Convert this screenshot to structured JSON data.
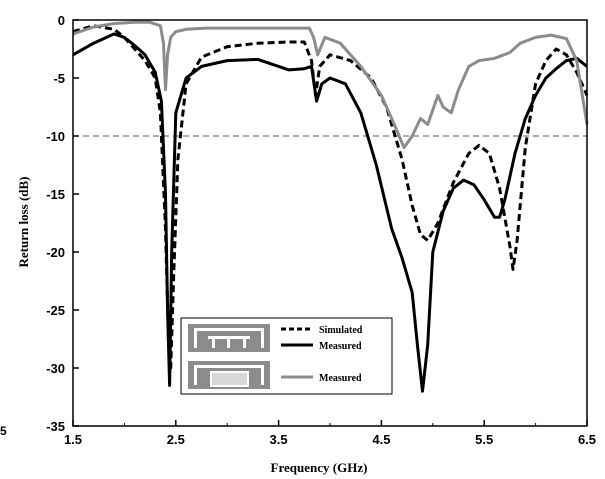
{
  "chart_data": {
    "type": "line",
    "title": "",
    "xlabel": "Frequency (GHz)",
    "ylabel": "Return loss (dB)",
    "xlim": [
      1.5,
      6.5
    ],
    "ylim": [
      -35,
      0
    ],
    "xticks": [
      1.5,
      2.5,
      3.5,
      4.5,
      5.5,
      6.5
    ],
    "xtick_labels": [
      "1.5",
      "2.5",
      "3.5",
      "4.5",
      "5.5",
      "6.5"
    ],
    "yticks": [
      0,
      -5,
      -10,
      -15,
      -20,
      -25,
      -30,
      -35
    ],
    "ytick_labels": [
      "0",
      "-5",
      "-10",
      "-15",
      "-20",
      "-25",
      "-30",
      "-35"
    ],
    "reference_line": {
      "y": -10,
      "style": "dashed"
    },
    "stray_label": "5",
    "legend_position": "bottom-center",
    "series": [
      {
        "name": "Simulated",
        "style": "dashed",
        "color": "#000000",
        "x": [
          1.5,
          1.7,
          1.9,
          2.0,
          2.1,
          2.2,
          2.3,
          2.35,
          2.4,
          2.43,
          2.45,
          2.48,
          2.52,
          2.6,
          2.75,
          3.0,
          3.3,
          3.6,
          3.75,
          3.82,
          3.86,
          3.9,
          4.0,
          4.2,
          4.4,
          4.55,
          4.7,
          4.8,
          4.88,
          4.95,
          5.05,
          5.2,
          5.35,
          5.45,
          5.55,
          5.65,
          5.75,
          5.78,
          5.82,
          5.9,
          6.0,
          6.1,
          6.2,
          6.3,
          6.4,
          6.5
        ],
        "y": [
          -1.0,
          -0.5,
          -0.8,
          -1.5,
          -2.5,
          -3.5,
          -5.0,
          -8.0,
          -18.0,
          -28.0,
          -30.0,
          -22.0,
          -12.0,
          -5.5,
          -3.2,
          -2.3,
          -2.0,
          -1.9,
          -1.9,
          -3.5,
          -6.5,
          -4.0,
          -3.0,
          -3.5,
          -5.0,
          -7.5,
          -12.0,
          -16.0,
          -18.5,
          -19.0,
          -17.5,
          -14.0,
          -11.5,
          -10.8,
          -11.5,
          -14.5,
          -19.5,
          -21.5,
          -19.0,
          -11.0,
          -5.5,
          -3.5,
          -2.5,
          -3.0,
          -4.5,
          -6.5
        ]
      },
      {
        "name": "Measured",
        "style": "solid",
        "color": "#000000",
        "x": [
          1.5,
          1.7,
          1.9,
          2.0,
          2.1,
          2.2,
          2.3,
          2.36,
          2.4,
          2.42,
          2.44,
          2.46,
          2.5,
          2.6,
          2.75,
          3.0,
          3.3,
          3.6,
          3.75,
          3.82,
          3.87,
          3.92,
          4.0,
          4.15,
          4.3,
          4.45,
          4.6,
          4.7,
          4.8,
          4.85,
          4.9,
          4.95,
          5.0,
          5.1,
          5.2,
          5.3,
          5.4,
          5.5,
          5.6,
          5.65,
          5.7,
          5.8,
          5.9,
          6.0,
          6.1,
          6.2,
          6.3,
          6.4,
          6.5
        ],
        "y": [
          -3.0,
          -2.0,
          -1.2,
          -1.5,
          -2.2,
          -3.0,
          -4.5,
          -7.0,
          -15.0,
          -25.0,
          -31.5,
          -20.0,
          -8.0,
          -5.0,
          -4.0,
          -3.5,
          -3.4,
          -4.3,
          -4.2,
          -4.0,
          -7.0,
          -5.5,
          -5.0,
          -5.5,
          -8.0,
          -12.5,
          -18.0,
          -20.5,
          -23.5,
          -28.0,
          -32.0,
          -28.0,
          -20.0,
          -16.5,
          -14.5,
          -13.8,
          -14.2,
          -15.5,
          -17.0,
          -17.0,
          -15.5,
          -11.5,
          -8.5,
          -6.5,
          -5.0,
          -4.2,
          -3.5,
          -3.3,
          -4.0
        ]
      },
      {
        "name": "Measured",
        "style": "solid",
        "color": "#8c8c8c",
        "x": [
          1.5,
          1.7,
          1.9,
          2.1,
          2.25,
          2.35,
          2.38,
          2.4,
          2.42,
          2.45,
          2.5,
          2.6,
          2.8,
          3.0,
          3.3,
          3.6,
          3.8,
          3.84,
          3.88,
          3.95,
          4.1,
          4.3,
          4.5,
          4.65,
          4.72,
          4.8,
          4.88,
          4.95,
          5.05,
          5.1,
          5.18,
          5.25,
          5.35,
          5.45,
          5.6,
          5.75,
          5.85,
          6.0,
          6.15,
          6.3,
          6.4,
          6.5
        ],
        "y": [
          -1.2,
          -0.6,
          -0.3,
          -0.2,
          -0.2,
          -0.5,
          -2.0,
          -6.0,
          -3.0,
          -1.5,
          -1.0,
          -0.8,
          -0.7,
          -0.7,
          -0.7,
          -0.7,
          -0.7,
          -1.5,
          -3.0,
          -1.5,
          -2.0,
          -4.0,
          -6.5,
          -9.5,
          -11.0,
          -10.0,
          -8.5,
          -9.0,
          -6.5,
          -7.5,
          -8.0,
          -6.0,
          -4.0,
          -3.5,
          -3.3,
          -2.8,
          -2.0,
          -1.5,
          -1.3,
          -1.6,
          -3.5,
          -9.0
        ]
      }
    ]
  },
  "legend": {
    "entries": [
      {
        "label": "Simulated",
        "style": "dashed",
        "color": "#000000"
      },
      {
        "label": "Measured",
        "style": "solid",
        "color": "#000000"
      },
      {
        "label": "Measured",
        "style": "solid",
        "color": "#8c8c8c"
      }
    ],
    "thumbnail_colors": {
      "board": "#8c8c8c",
      "trace": "#ffffff"
    }
  }
}
